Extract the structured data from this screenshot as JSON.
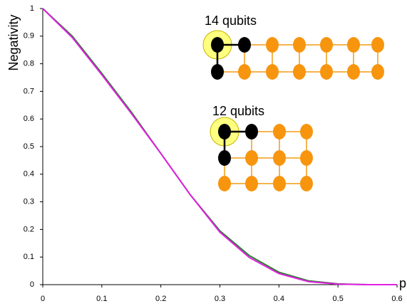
{
  "chart_data": {
    "type": "line",
    "x_label": "p",
    "y_label": "Negativity",
    "annotations": [
      "14 qubits",
      "12 qubits"
    ],
    "x": [
      0,
      0.05,
      0.1,
      0.15,
      0.2,
      0.25,
      0.3,
      0.35,
      0.4,
      0.45,
      0.5,
      0.55,
      0.6
    ],
    "series": [
      {
        "color": "#2e7d32",
        "values": [
          1,
          0.9,
          0.765,
          0.625,
          0.475,
          0.325,
          0.195,
          0.105,
          0.045,
          0.014,
          0.003,
          0,
          0
        ]
      },
      {
        "color": "#e020e0",
        "values": [
          1,
          0.895,
          0.76,
          0.62,
          0.475,
          0.325,
          0.19,
          0.098,
          0.04,
          0.011,
          0.002,
          0,
          0
        ]
      }
    ],
    "xlim": [
      0,
      0.6
    ],
    "xticks": [
      0,
      0.1,
      0.2,
      0.3,
      0.4,
      0.5,
      0.6
    ],
    "ylim": [
      0,
      1
    ],
    "yticks": [
      0,
      0.1,
      0.2,
      0.3,
      0.4,
      0.5,
      0.6,
      0.7,
      0.8,
      0.9,
      1
    ],
    "grid": false
  }
}
